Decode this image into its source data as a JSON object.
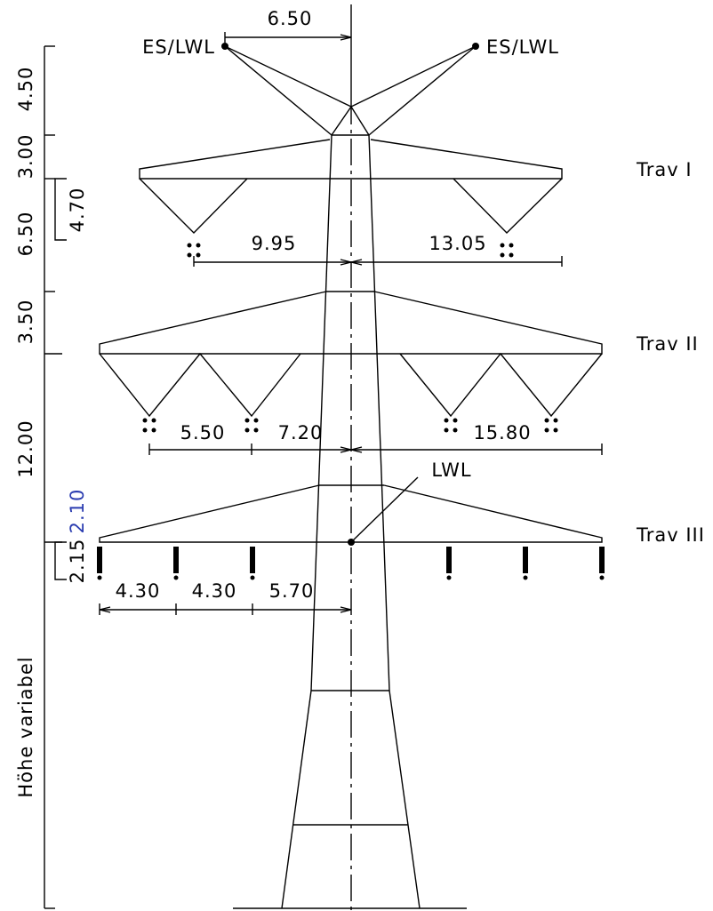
{
  "top_dimension": "6.50",
  "earth_wires": [
    "ES/LWL",
    "ES/LWL"
  ],
  "crossarms": [
    {
      "label": "Trav I",
      "dimensions": [
        "9.95",
        "13.05"
      ]
    },
    {
      "label": "Trav II",
      "dimensions": [
        "5.50",
        "7.20",
        "15.80"
      ]
    },
    {
      "label": "Trav III",
      "dimensions": [
        "4.30",
        "4.30",
        "5.70"
      ]
    }
  ],
  "lwl_label": "LWL",
  "left_dimensions": [
    "4.50",
    "3.00",
    "6.50",
    "3.50",
    "12.00"
  ],
  "inner_dimensions": [
    "4.70",
    "2.15"
  ],
  "blue_dimension": "2.10",
  "height_label": "Höhe variabel"
}
